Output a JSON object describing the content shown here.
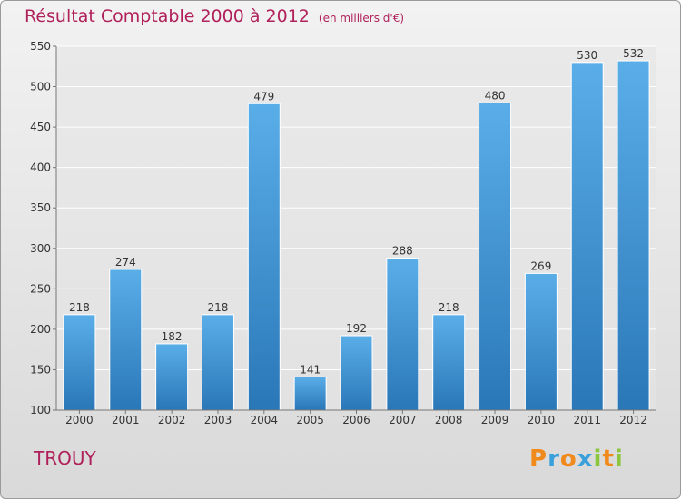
{
  "chart_data": {
    "type": "bar",
    "title": "Résultat Comptable 2000 à 2012",
    "subtitle": "(en milliers d'€)",
    "categories": [
      "2000",
      "2001",
      "2002",
      "2003",
      "2004",
      "2005",
      "2006",
      "2007",
      "2008",
      "2009",
      "2010",
      "2011",
      "2012"
    ],
    "values": [
      218,
      274,
      182,
      218,
      479,
      141,
      192,
      288,
      218,
      480,
      269,
      530,
      532
    ],
    "ylim": [
      100,
      550
    ],
    "yticks": [
      100,
      150,
      200,
      250,
      300,
      350,
      400,
      450,
      500,
      550
    ],
    "grid": true,
    "bar_color": "#3a8fd6"
  },
  "place": "TROUY",
  "logo": {
    "text": [
      "P",
      "r",
      "o",
      "x",
      "i",
      "t",
      "i"
    ],
    "colors": [
      "#f08a1c",
      "#3aa0dc",
      "#f08a1c",
      "#3aa0dc",
      "#8cc63e",
      "#f08a1c",
      "#8cc63e"
    ]
  }
}
